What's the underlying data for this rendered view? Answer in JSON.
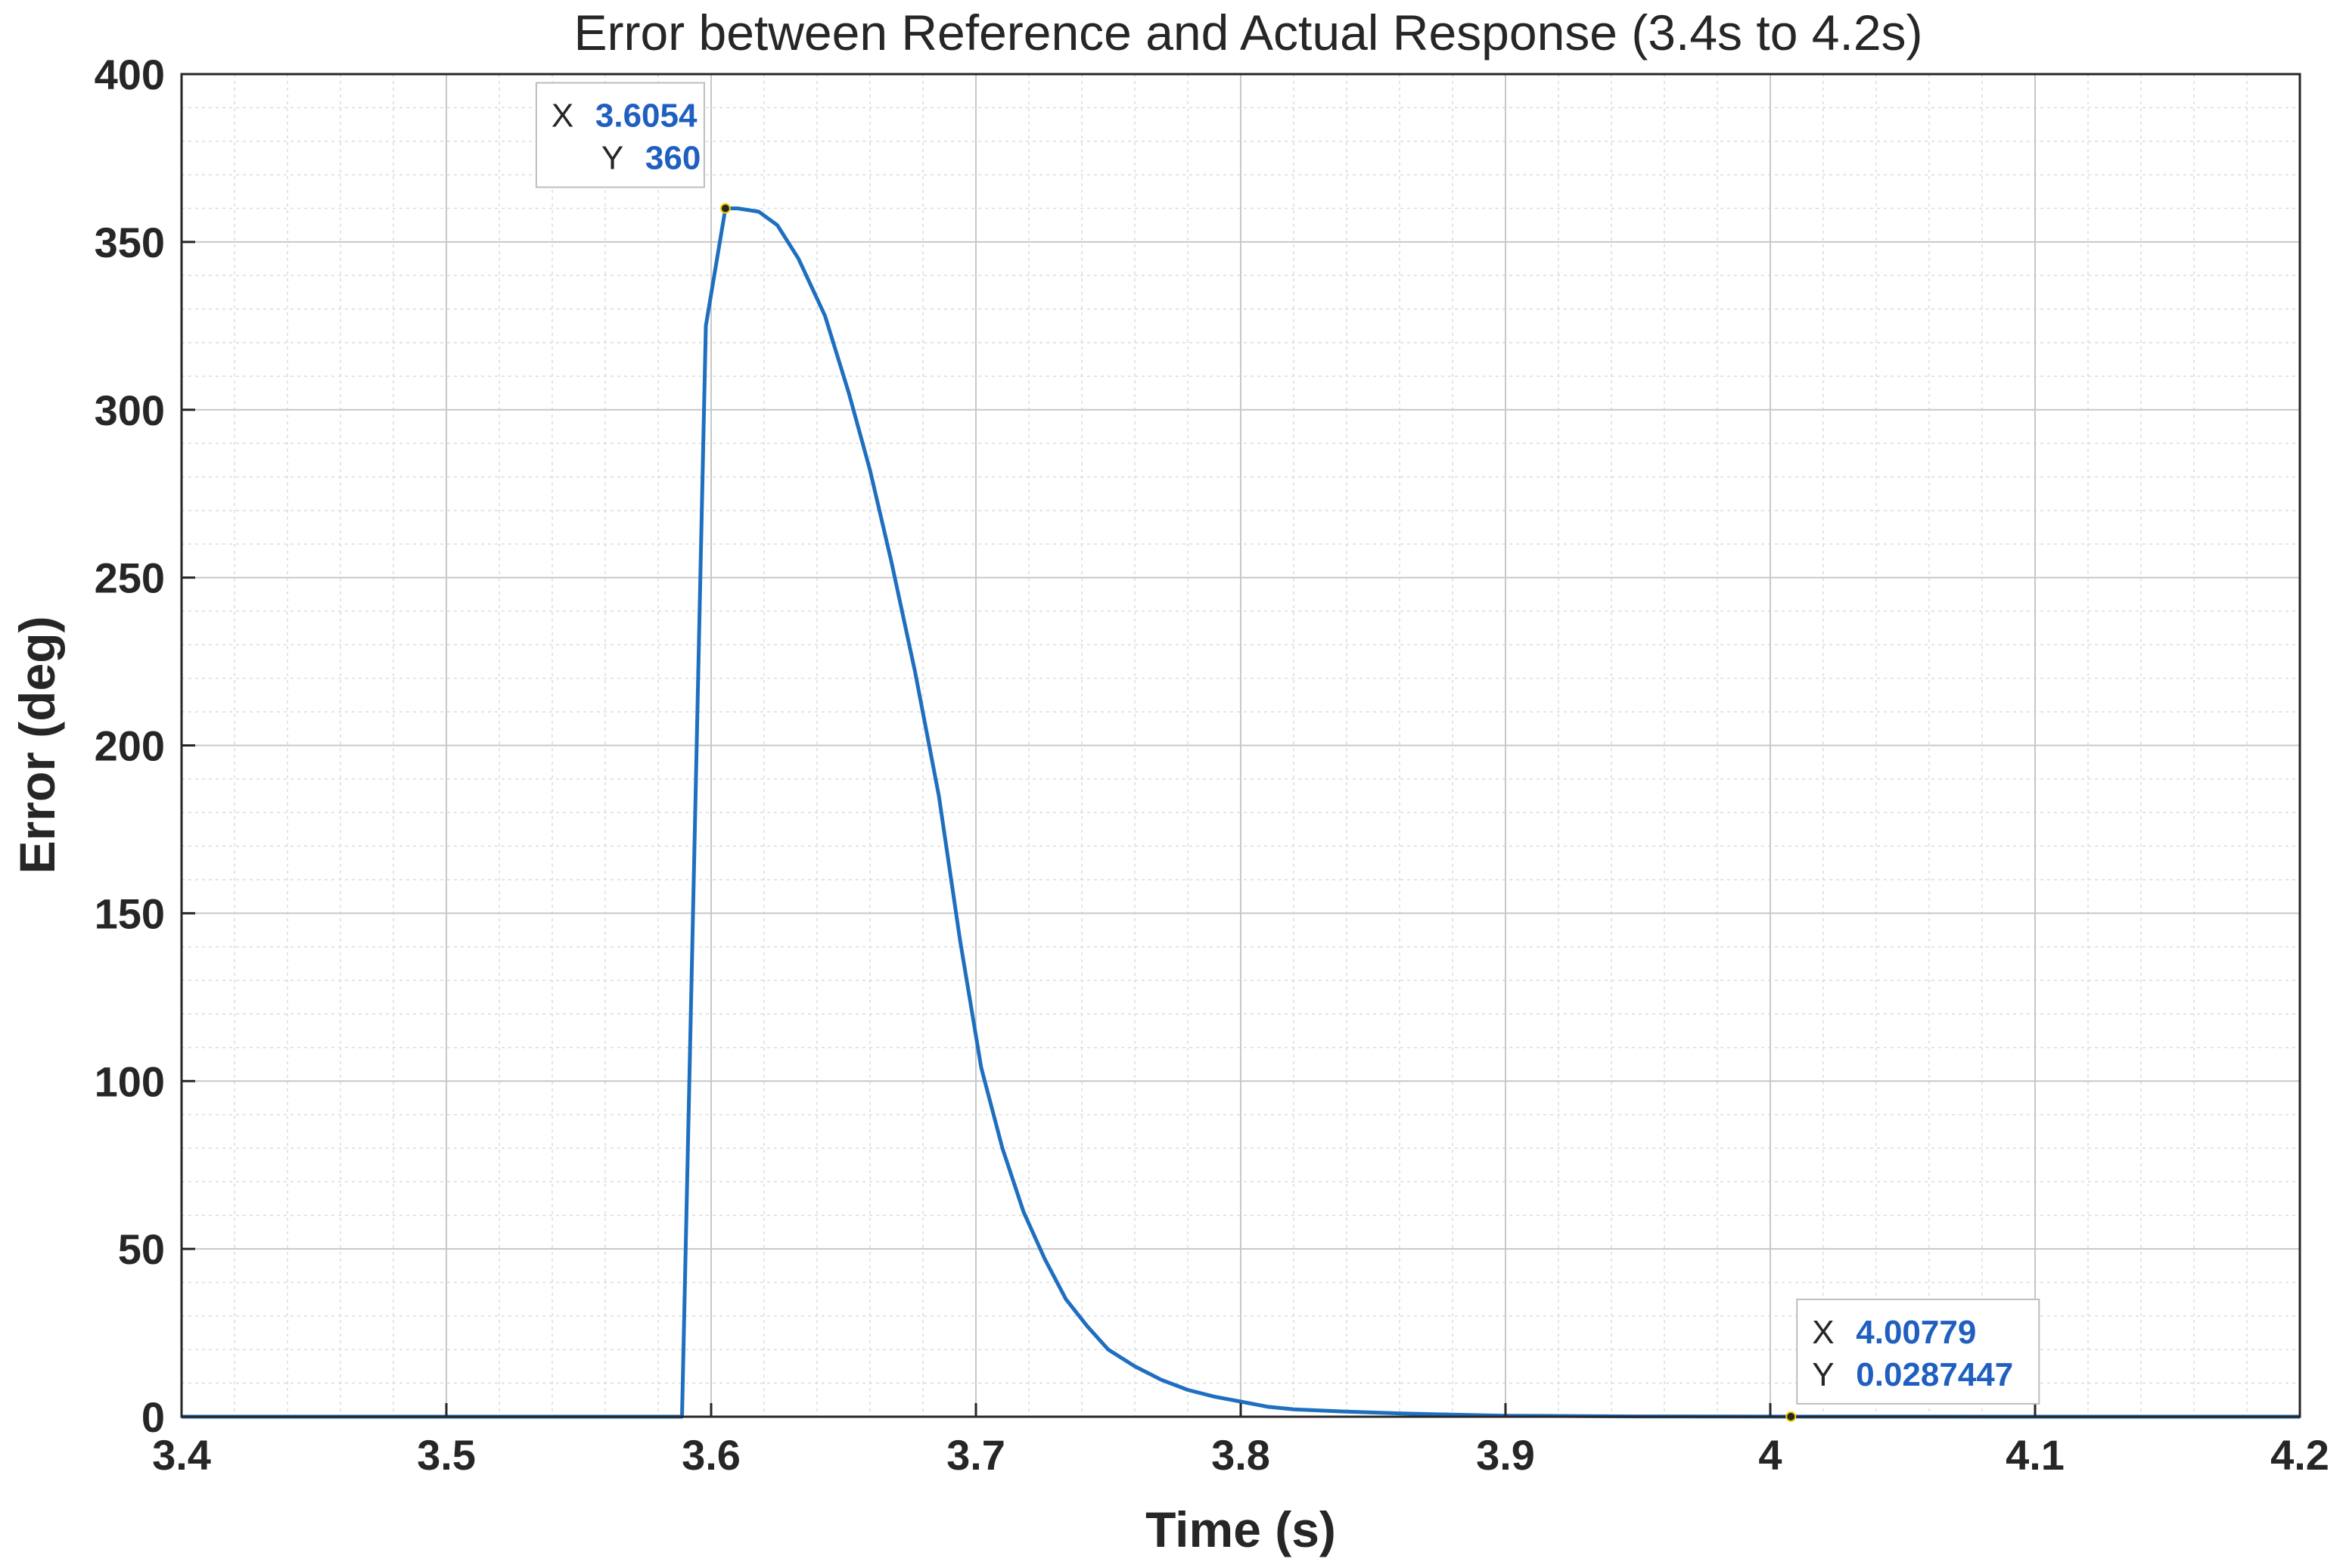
{
  "chart_data": {
    "type": "line",
    "title": "Error between Reference and Actual Response (3.4s to 4.2s)",
    "xlabel": "Time (s)",
    "ylabel": "Error (deg)",
    "xlim": [
      3.4,
      4.2
    ],
    "ylim": [
      0,
      400
    ],
    "x_ticks": [
      3.4,
      3.5,
      3.6,
      3.7,
      3.8,
      3.9,
      4,
      4.1,
      4.2
    ],
    "x_tick_labels": [
      "3.4",
      "3.5",
      "3.6",
      "3.7",
      "3.8",
      "3.9",
      "4",
      "4.1",
      "4.2"
    ],
    "y_ticks": [
      0,
      50,
      100,
      150,
      200,
      250,
      300,
      350,
      400
    ],
    "y_tick_labels": [
      "0",
      "50",
      "100",
      "150",
      "200",
      "250",
      "300",
      "350",
      "400"
    ],
    "x_minor_step": 0.02,
    "y_minor_step": 10,
    "grid": true,
    "minor_grid": true,
    "line_color": "#1f6fc0",
    "series": [
      {
        "x": [
          3.4,
          3.589,
          3.598,
          3.6054,
          3.61,
          3.618,
          3.625,
          3.633,
          3.643,
          3.652,
          3.66,
          3.668,
          3.677,
          3.686,
          3.694,
          3.702,
          3.71,
          3.718,
          3.726,
          3.734,
          3.742,
          3.75,
          3.76,
          3.77,
          3.78,
          3.79,
          3.8,
          3.81,
          3.82,
          3.84,
          3.86,
          3.88,
          3.9,
          3.95,
          4.00779,
          4.2
        ],
        "y": [
          0,
          0,
          325,
          360,
          360,
          359,
          355,
          345,
          328,
          305,
          282,
          255,
          222,
          185,
          142,
          104,
          80,
          61,
          47,
          35,
          27,
          20,
          15,
          11,
          8,
          6,
          4.5,
          3,
          2.2,
          1.5,
          1,
          0.6,
          0.3,
          0.1,
          0.0287447,
          0
        ]
      }
    ],
    "datatips": [
      {
        "x": 3.6054,
        "y": 360,
        "x_key": "X",
        "y_key": "Y",
        "x_text": "3.6054",
        "y_text": "360"
      },
      {
        "x": 4.00779,
        "y": 0.0287447,
        "x_key": "X",
        "y_key": "Y",
        "x_text": "4.00779",
        "y_text": "0.0287447"
      }
    ]
  }
}
